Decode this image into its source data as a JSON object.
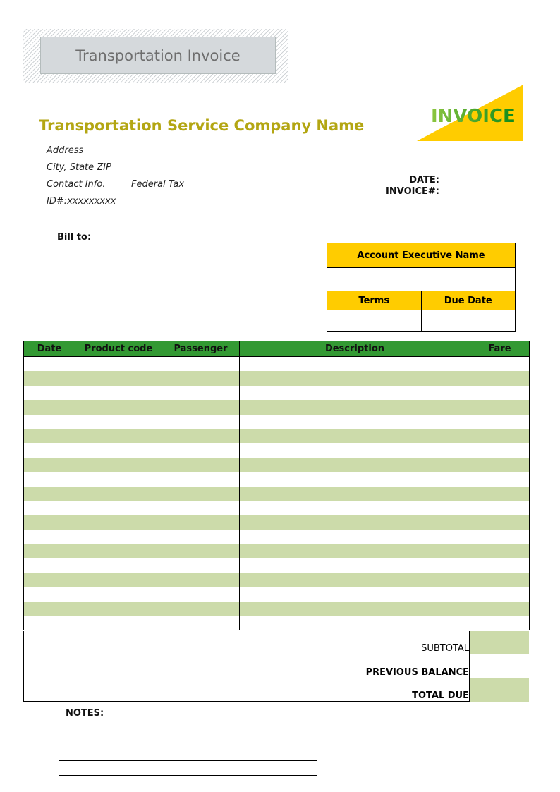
{
  "banner_title": "Transportation Invoice",
  "invoice_word": "INVOICE",
  "company": {
    "name": "Transportation Service Company Name",
    "address": "Address",
    "city": "City, State ZIP",
    "contact": "Contact Info.",
    "federal_tax": "Federal Tax",
    "id": "ID#:xxxxxxxxx"
  },
  "date_label": "DATE:",
  "invoice_no_label": "INVOICE#:",
  "bill_to_label": "Bill to:",
  "account": {
    "executive_label": "Account Executive Name",
    "terms_label": "Terms",
    "due_date_label": "Due Date"
  },
  "table": {
    "columns": [
      "Date",
      "Product code",
      "Passenger",
      "Description",
      "Fare"
    ],
    "row_count": 19
  },
  "summary": {
    "subtotal": "SUBTOTAL",
    "previous_balance": "PREVIOUS BALANCE",
    "total_due": "TOTAL DUE"
  },
  "notes_label": "NOTES:",
  "colors": {
    "accent_yellow": "#ffcc00",
    "header_green": "#339933",
    "row_green": "#ccdbaa",
    "company_gold": "#b3a613"
  }
}
